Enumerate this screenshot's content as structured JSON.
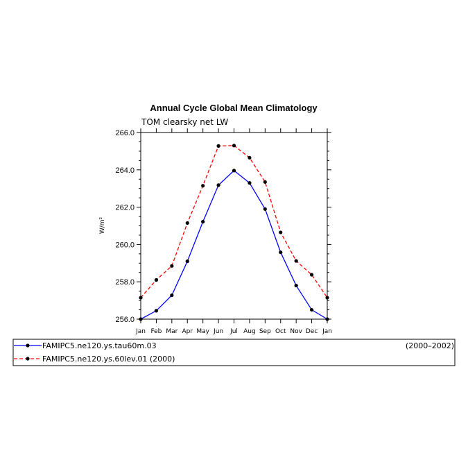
{
  "chart_data": {
    "type": "line",
    "title": "Annual Cycle Global Mean Climatology",
    "subtitle": "TOM clearsky net LW",
    "ylabel": "W/m²",
    "xlabel": "",
    "categories": [
      "Jan",
      "Feb",
      "Mar",
      "Apr",
      "May",
      "Jun",
      "Jul",
      "Aug",
      "Sep",
      "Oct",
      "Nov",
      "Dec",
      "Jan"
    ],
    "ylim": [
      256.0,
      266.0
    ],
    "yticks": [
      "256.0",
      "258.0",
      "260.0",
      "262.0",
      "264.0",
      "266.0"
    ],
    "grid": false,
    "legend_position": "bottom",
    "series": [
      {
        "name": "FAMIPC5.ne120.ys.tau60m.03",
        "period": "(2000–2002)",
        "color": "#0000ff",
        "style": "solid",
        "values": [
          256.0,
          256.45,
          257.28,
          259.1,
          261.22,
          263.18,
          263.96,
          263.3,
          261.9,
          259.58,
          257.8,
          256.5,
          256.0
        ]
      },
      {
        "name": "FAMIPC5.ne120.ys.60lev.01 (2000)",
        "period": "",
        "color": "#ff0000",
        "style": "dashed",
        "values": [
          257.15,
          258.1,
          258.85,
          261.15,
          263.15,
          265.28,
          265.3,
          264.65,
          263.35,
          260.65,
          259.12,
          258.38,
          257.15
        ]
      }
    ]
  }
}
